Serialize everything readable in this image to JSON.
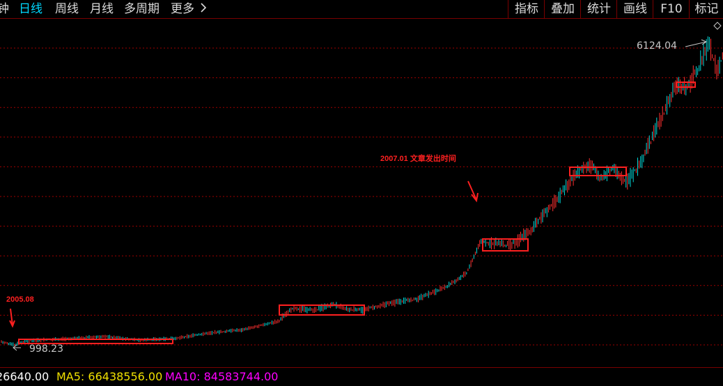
{
  "tabs": [
    {
      "label": "钟",
      "active": false
    },
    {
      "label": "日线",
      "active": true
    },
    {
      "label": "周线",
      "active": false
    },
    {
      "label": "月线",
      "active": false
    },
    {
      "label": "多周期",
      "active": false
    },
    {
      "label": "更多",
      "active": false
    }
  ],
  "more_icon": "chevron-right-icon",
  "right_buttons": [
    "指标",
    "叠加",
    "统计",
    "画线",
    "F10",
    "标记"
  ],
  "chart": {
    "high_label": "6124.04",
    "low_label": "998.23",
    "annotation_start": "2005.08",
    "annotation_article": "2007.01 文章发出时间",
    "colors": {
      "up": "#ff3030",
      "down": "#00d8d8",
      "grid": "#a00000",
      "box": "#ff2020",
      "annotation": "#ff2020"
    }
  },
  "bottom": {
    "vol_label": "26640.00",
    "ma5_label": "MA5: 66438556.00",
    "ma10_label": "MA10: 84583744.00",
    "colors": {
      "vol": "#ffffff",
      "ma5": "#f0e000",
      "ma10": "#ff00ff"
    }
  }
}
